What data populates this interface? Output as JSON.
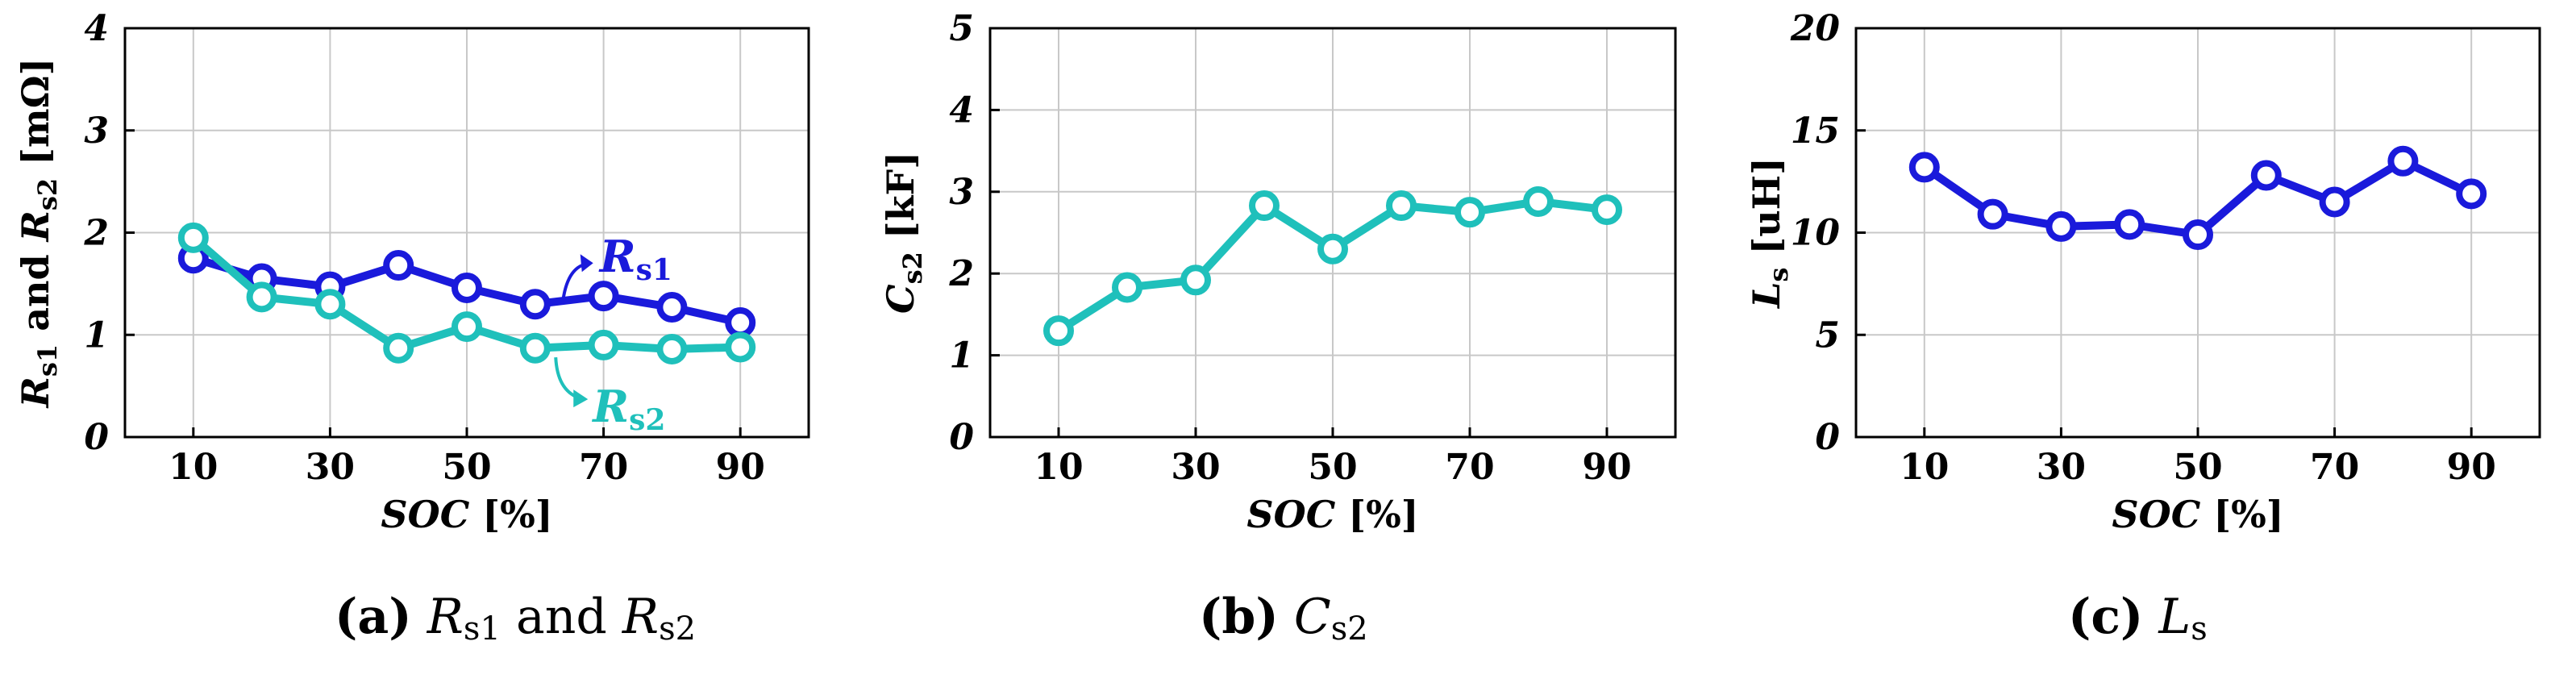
{
  "colors": {
    "blue": "#1a1adb",
    "teal": "#1fc0bb",
    "grid": "#c8c8c8",
    "axis": "#000000"
  },
  "chart_data": [
    {
      "type": "line",
      "panel": "a",
      "x": [
        10,
        20,
        30,
        40,
        50,
        60,
        70,
        80,
        90
      ],
      "xticks": [
        "10",
        "30",
        "50",
        "70",
        "90"
      ],
      "xlim": [
        0,
        100
      ],
      "ylim": [
        0,
        4
      ],
      "yticks": [
        "0",
        "1",
        "2",
        "3",
        "4"
      ],
      "xlabel": {
        "main": "SOC",
        "unit": " [%]"
      },
      "ylabel": {
        "parts": [
          "R",
          "s1",
          " and ",
          "R",
          "s2",
          " [mΩ]"
        ]
      },
      "caption": {
        "letter": "(a)",
        "parts": [
          "R",
          "s1",
          " and ",
          "R",
          "s2"
        ]
      },
      "series": [
        {
          "name": "Rs1",
          "label_main": "R",
          "label_sub": "s1",
          "color": "#1a1adb",
          "values": [
            1.75,
            1.55,
            1.47,
            1.68,
            1.46,
            1.3,
            1.38,
            1.27,
            1.12
          ]
        },
        {
          "name": "Rs2",
          "label_main": "R",
          "label_sub": "s2",
          "color": "#1fc0bb",
          "values": [
            1.95,
            1.37,
            1.3,
            0.87,
            1.08,
            0.87,
            0.9,
            0.86,
            0.88
          ]
        }
      ]
    },
    {
      "type": "line",
      "panel": "b",
      "x": [
        10,
        20,
        30,
        40,
        50,
        60,
        70,
        80,
        90
      ],
      "xticks": [
        "10",
        "30",
        "50",
        "70",
        "90"
      ],
      "xlim": [
        0,
        100
      ],
      "ylim": [
        0,
        5
      ],
      "yticks": [
        "0",
        "1",
        "2",
        "3",
        "4",
        "5"
      ],
      "xlabel": {
        "main": "SOC",
        "unit": " [%]"
      },
      "ylabel": {
        "parts": [
          "C",
          "s2",
          " [kF]"
        ]
      },
      "caption": {
        "letter": "(b)",
        "parts": [
          "C",
          "s2"
        ]
      },
      "series": [
        {
          "color": "#1fc0bb",
          "values": [
            1.3,
            1.83,
            1.92,
            2.83,
            2.3,
            2.83,
            2.75,
            2.88,
            2.78
          ]
        }
      ]
    },
    {
      "type": "line",
      "panel": "c",
      "x": [
        10,
        20,
        30,
        40,
        50,
        60,
        70,
        80,
        90
      ],
      "xticks": [
        "10",
        "30",
        "50",
        "70",
        "90"
      ],
      "xlim": [
        0,
        100
      ],
      "ylim": [
        0,
        20
      ],
      "yticks": [
        "0",
        "5",
        "10",
        "15",
        "20"
      ],
      "xlabel": {
        "main": "SOC",
        "unit": " [%]"
      },
      "ylabel": {
        "parts": [
          "L",
          "s",
          " [uH]"
        ]
      },
      "caption": {
        "letter": "(c)",
        "parts": [
          "L",
          "s"
        ]
      },
      "series": [
        {
          "color": "#1a1adb",
          "values": [
            13.2,
            10.9,
            10.3,
            10.4,
            9.9,
            12.8,
            11.5,
            13.5,
            11.9
          ]
        }
      ]
    }
  ]
}
